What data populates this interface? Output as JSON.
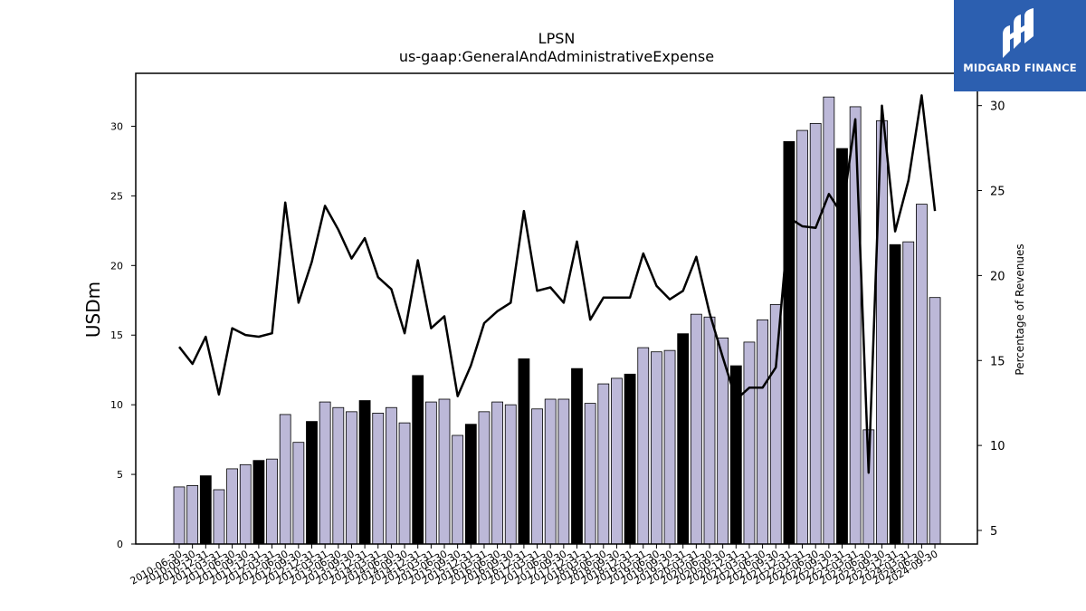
{
  "brand": {
    "name": "MIDGARD FINANCE",
    "logo_icon": "midgard-logo-icon",
    "color": "#2c5fb0"
  },
  "chart_data": {
    "type": "bar",
    "title": "LPSN",
    "subtitle": "us-gaap:GeneralAndAdministrativeExpense",
    "ylabel": "USDm",
    "y2label": "Percentage of Revenues",
    "ylim": [
      0,
      33.8
    ],
    "y2lim": [
      4.2,
      31.9
    ],
    "yticks": [
      0,
      5,
      10,
      15,
      20,
      25,
      30
    ],
    "y2ticks": [
      5,
      10,
      15,
      20,
      25,
      30
    ],
    "grid": false,
    "categories": [
      "2010-06-30",
      "2010-09-30",
      "2010-12-31",
      "2011-03-31",
      "2011-06-30",
      "2011-09-30",
      "2011-12-31",
      "2012-03-31",
      "2012-06-30",
      "2012-09-30",
      "2012-12-31",
      "2013-03-31",
      "2013-06-30",
      "2013-09-30",
      "2013-12-31",
      "2014-03-31",
      "2014-06-30",
      "2014-09-30",
      "2014-12-31",
      "2015-03-31",
      "2015-06-30",
      "2015-09-30",
      "2015-12-31",
      "2016-03-31",
      "2016-06-30",
      "2016-09-30",
      "2016-12-31",
      "2017-03-31",
      "2017-06-30",
      "2017-09-30",
      "2017-12-31",
      "2018-03-31",
      "2018-06-30",
      "2018-09-30",
      "2018-12-31",
      "2019-03-31",
      "2019-06-30",
      "2019-09-30",
      "2019-12-31",
      "2020-03-31",
      "2020-06-30",
      "2020-09-30",
      "2020-12-31",
      "2021-03-31",
      "2021-06-30",
      "2021-09-30",
      "2021-12-31",
      "2022-03-31",
      "2022-06-30",
      "2022-09-30",
      "2022-12-31",
      "2023-03-31",
      "2023-06-30",
      "2023-09-30",
      "2023-12-31",
      "2024-03-31",
      "2024-06-30",
      "2024-09-30"
    ],
    "series": [
      {
        "kind": "bar",
        "axis": "left",
        "values": [
          4.1,
          4.2,
          4.9,
          3.9,
          5.4,
          5.7,
          6.0,
          6.1,
          9.3,
          7.3,
          8.8,
          10.2,
          9.8,
          9.5,
          10.3,
          9.4,
          9.8,
          8.7,
          12.1,
          10.2,
          10.4,
          7.8,
          8.6,
          9.5,
          10.2,
          10.0,
          13.3,
          9.7,
          10.4,
          10.4,
          12.6,
          10.1,
          11.5,
          11.9,
          12.2,
          14.1,
          13.8,
          13.9,
          15.1,
          16.5,
          16.3,
          14.8,
          12.8,
          14.5,
          16.1,
          17.2,
          28.9,
          29.7,
          30.2,
          32.1,
          28.4,
          31.4,
          8.2,
          30.4,
          21.5,
          21.7,
          24.4,
          17.7
        ],
        "highlight_color": "#000000",
        "color": "#bcb8d8",
        "highlighted": [
          false,
          false,
          true,
          false,
          false,
          false,
          true,
          false,
          false,
          false,
          true,
          false,
          false,
          false,
          true,
          false,
          false,
          false,
          true,
          false,
          false,
          false,
          true,
          false,
          false,
          false,
          true,
          false,
          false,
          false,
          true,
          false,
          false,
          false,
          true,
          false,
          false,
          false,
          true,
          false,
          false,
          false,
          true,
          false,
          false,
          false,
          true,
          false,
          false,
          false,
          true,
          false,
          false,
          false,
          true,
          false,
          false,
          false
        ]
      },
      {
        "kind": "line",
        "axis": "right",
        "color": "#000000",
        "values": [
          15.8,
          14.8,
          16.4,
          13.0,
          16.9,
          16.5,
          16.4,
          16.6,
          24.3,
          18.4,
          20.8,
          24.1,
          22.7,
          21.0,
          22.2,
          19.9,
          19.2,
          16.6,
          20.9,
          16.9,
          17.6,
          12.9,
          14.7,
          17.2,
          17.9,
          18.4,
          23.8,
          19.1,
          19.3,
          18.4,
          22.0,
          17.4,
          18.7,
          18.7,
          18.7,
          21.3,
          19.4,
          18.6,
          19.1,
          21.1,
          17.8,
          15.2,
          12.7,
          13.4,
          13.4,
          14.6,
          23.4,
          22.9,
          22.8,
          24.8,
          23.6,
          29.2,
          8.4,
          30.0,
          22.6,
          25.6,
          30.6,
          23.8
        ]
      }
    ]
  }
}
